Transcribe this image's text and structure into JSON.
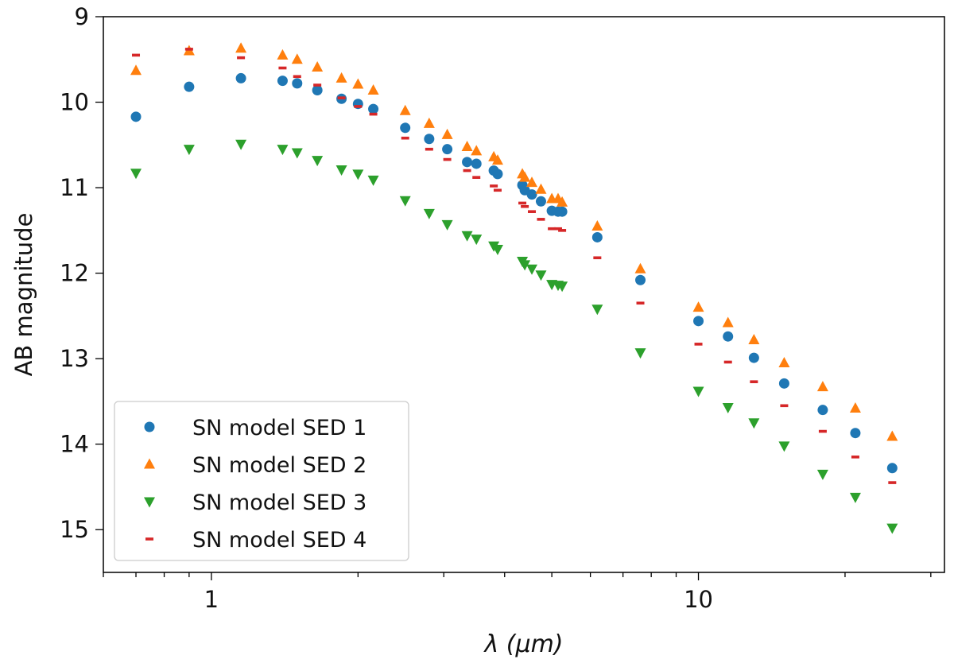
{
  "chart_data": {
    "type": "scatter",
    "xscale": "log",
    "xlim": [
      0.6,
      32
    ],
    "ylim": [
      15.5,
      9
    ],
    "y_inverted": true,
    "xlabel": "λ (μm)",
    "ylabel": "AB magnitude",
    "x_major_ticks": [
      1,
      10
    ],
    "x_major_tick_labels": [
      "1",
      "10"
    ],
    "y_ticks": [
      9,
      10,
      11,
      12,
      13,
      14,
      15
    ],
    "y_tick_labels": [
      "9",
      "10",
      "11",
      "12",
      "13",
      "14",
      "15"
    ],
    "legend_position": "bottom-left",
    "series": [
      {
        "name": "SN model SED 1",
        "marker": "circle",
        "color": "#1f77b4",
        "points": [
          [
            0.7,
            10.17
          ],
          [
            0.9,
            9.82
          ],
          [
            1.15,
            9.72
          ],
          [
            1.4,
            9.75
          ],
          [
            1.5,
            9.78
          ],
          [
            1.65,
            9.86
          ],
          [
            1.85,
            9.96
          ],
          [
            2.0,
            10.02
          ],
          [
            2.15,
            10.08
          ],
          [
            2.5,
            10.3
          ],
          [
            2.8,
            10.43
          ],
          [
            3.05,
            10.55
          ],
          [
            3.35,
            10.7
          ],
          [
            3.5,
            10.72
          ],
          [
            3.8,
            10.8
          ],
          [
            3.87,
            10.84
          ],
          [
            4.35,
            10.97
          ],
          [
            4.4,
            11.03
          ],
          [
            4.55,
            11.08
          ],
          [
            4.75,
            11.16
          ],
          [
            5.0,
            11.27
          ],
          [
            5.15,
            11.28
          ],
          [
            5.25,
            11.28
          ],
          [
            6.2,
            11.58
          ],
          [
            7.6,
            12.08
          ],
          [
            10.0,
            12.56
          ],
          [
            11.5,
            12.74
          ],
          [
            13.0,
            12.99
          ],
          [
            15.0,
            13.29
          ],
          [
            18.0,
            13.6
          ],
          [
            21.0,
            13.87
          ],
          [
            25.0,
            14.28
          ]
        ]
      },
      {
        "name": "SN model SED 2",
        "marker": "triangle-up",
        "color": "#ff7f0e",
        "points": [
          [
            0.7,
            9.63
          ],
          [
            0.9,
            9.4
          ],
          [
            1.15,
            9.37
          ],
          [
            1.4,
            9.45
          ],
          [
            1.5,
            9.5
          ],
          [
            1.65,
            9.59
          ],
          [
            1.85,
            9.72
          ],
          [
            2.0,
            9.79
          ],
          [
            2.15,
            9.86
          ],
          [
            2.5,
            10.1
          ],
          [
            2.8,
            10.25
          ],
          [
            3.05,
            10.38
          ],
          [
            3.35,
            10.52
          ],
          [
            3.5,
            10.57
          ],
          [
            3.8,
            10.64
          ],
          [
            3.87,
            10.68
          ],
          [
            4.35,
            10.84
          ],
          [
            4.4,
            10.88
          ],
          [
            4.55,
            10.94
          ],
          [
            4.75,
            11.02
          ],
          [
            5.0,
            11.13
          ],
          [
            5.15,
            11.13
          ],
          [
            5.25,
            11.17
          ],
          [
            6.2,
            11.45
          ],
          [
            7.6,
            11.95
          ],
          [
            10.0,
            12.4
          ],
          [
            11.5,
            12.58
          ],
          [
            13.0,
            12.78
          ],
          [
            15.0,
            13.05
          ],
          [
            18.0,
            13.33
          ],
          [
            21.0,
            13.58
          ],
          [
            25.0,
            13.91
          ]
        ]
      },
      {
        "name": "SN model SED 3",
        "marker": "triangle-down",
        "color": "#2ca02c",
        "points": [
          [
            0.7,
            10.83
          ],
          [
            0.9,
            10.55
          ],
          [
            1.15,
            10.49
          ],
          [
            1.4,
            10.55
          ],
          [
            1.5,
            10.59
          ],
          [
            1.65,
            10.68
          ],
          [
            1.85,
            10.79
          ],
          [
            2.0,
            10.84
          ],
          [
            2.15,
            10.91
          ],
          [
            2.5,
            11.15
          ],
          [
            2.8,
            11.3
          ],
          [
            3.05,
            11.43
          ],
          [
            3.35,
            11.56
          ],
          [
            3.5,
            11.6
          ],
          [
            3.8,
            11.68
          ],
          [
            3.87,
            11.72
          ],
          [
            4.35,
            11.86
          ],
          [
            4.4,
            11.9
          ],
          [
            4.55,
            11.95
          ],
          [
            4.75,
            12.02
          ],
          [
            5.0,
            12.13
          ],
          [
            5.15,
            12.14
          ],
          [
            5.25,
            12.15
          ],
          [
            6.2,
            12.42
          ],
          [
            7.6,
            12.93
          ],
          [
            10.0,
            13.38
          ],
          [
            11.5,
            13.57
          ],
          [
            13.0,
            13.75
          ],
          [
            15.0,
            14.02
          ],
          [
            18.0,
            14.35
          ],
          [
            21.0,
            14.62
          ],
          [
            25.0,
            14.98
          ]
        ]
      },
      {
        "name": "SN model SED 4",
        "marker": "dash",
        "color": "#d62728",
        "points": [
          [
            0.7,
            9.45
          ],
          [
            0.9,
            9.38
          ],
          [
            1.15,
            9.48
          ],
          [
            1.4,
            9.6
          ],
          [
            1.5,
            9.7
          ],
          [
            1.65,
            9.8
          ],
          [
            1.85,
            9.95
          ],
          [
            2.0,
            10.05
          ],
          [
            2.15,
            10.14
          ],
          [
            2.5,
            10.42
          ],
          [
            2.8,
            10.55
          ],
          [
            3.05,
            10.67
          ],
          [
            3.35,
            10.8
          ],
          [
            3.5,
            10.88
          ],
          [
            3.8,
            10.98
          ],
          [
            3.87,
            11.03
          ],
          [
            4.35,
            11.18
          ],
          [
            4.4,
            11.22
          ],
          [
            4.55,
            11.28
          ],
          [
            4.75,
            11.37
          ],
          [
            5.0,
            11.48
          ],
          [
            5.15,
            11.48
          ],
          [
            5.25,
            11.5
          ],
          [
            6.2,
            11.82
          ],
          [
            7.6,
            12.35
          ],
          [
            10.0,
            12.83
          ],
          [
            11.5,
            13.04
          ],
          [
            13.0,
            13.27
          ],
          [
            15.0,
            13.55
          ],
          [
            18.0,
            13.85
          ],
          [
            21.0,
            14.15
          ],
          [
            25.0,
            14.45
          ]
        ]
      }
    ]
  }
}
